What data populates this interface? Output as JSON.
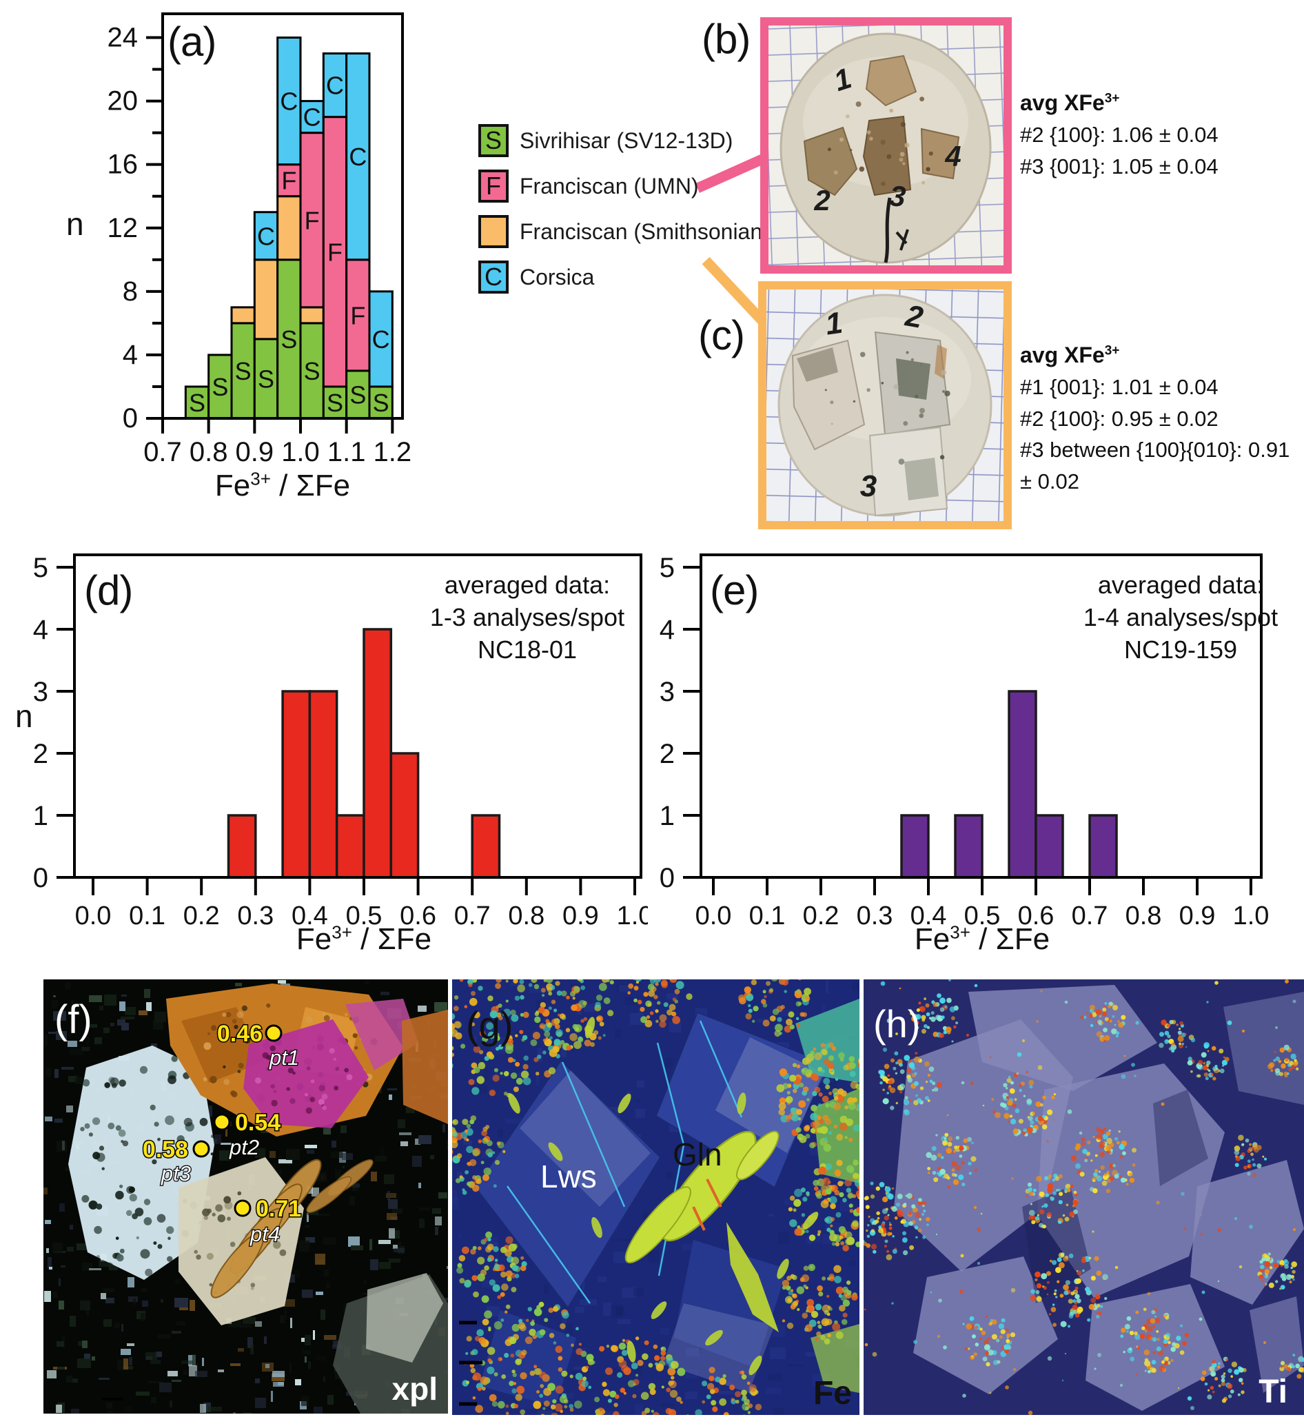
{
  "figure": {
    "background": "#ffffff"
  },
  "axis_title": {
    "base": "Fe",
    "sup": "3+",
    "rest": " / ΣFe"
  },
  "panel_a": {
    "label": "(a)"
  },
  "panel_b": {
    "label": "(b)",
    "border_color": "#F0618F",
    "fragment_labels": [
      "1",
      "2",
      "3",
      "4"
    ],
    "caption": {
      "title_base": "avg XFe",
      "title_sup": "3+",
      "lines": [
        "#2 {100}: 1.06 ± 0.04",
        "#3 {001}: 1.05 ± 0.04"
      ]
    }
  },
  "panel_c": {
    "label": "(c)",
    "border_color": "#F9B75D",
    "fragment_labels": [
      "1",
      "2",
      "3"
    ],
    "caption": {
      "title_base": "avg XFe",
      "title_sup": "3+",
      "lines": [
        "#1 {001}: 1.01 ± 0.04",
        "#2 {100}: 0.95 ± 0.02",
        "#3 between {100}{010}: 0.91 ± 0.02"
      ]
    }
  },
  "panel_d": {
    "label": "(d)"
  },
  "panel_e": {
    "label": "(e)"
  },
  "panel_f": {
    "label": "(f)",
    "tag": "xpl",
    "points": [
      {
        "name": "pt1",
        "value": "0.46"
      },
      {
        "name": "pt2",
        "value": "0.54"
      },
      {
        "name": "pt3",
        "value": "0.58"
      },
      {
        "name": "pt4",
        "value": "0.71"
      }
    ]
  },
  "panel_g": {
    "label": "(g)",
    "tag": "Fe",
    "mineral_labels": [
      "Lws",
      "Gln"
    ]
  },
  "panel_h": {
    "label": "(h)",
    "tag": "Ti"
  },
  "chart_data": [
    {
      "id": "a",
      "type": "bar",
      "stacked": true,
      "xlabel": "Fe³⁺ / ΣFe",
      "ylabel": "n",
      "bin_width": 0.05,
      "bin_starts": [
        0.75,
        0.8,
        0.85,
        0.9,
        0.95,
        1.0,
        1.05,
        1.1,
        1.15
      ],
      "series": [
        {
          "name": "Sivrihisar (SV12-13D)",
          "letter": "S",
          "color": "#82C341",
          "values": [
            2,
            4,
            6,
            5,
            10,
            6,
            2,
            3,
            2
          ]
        },
        {
          "name": "Franciscan (Smithsonian)",
          "letter": "",
          "color": "#FBBC69",
          "values": [
            0,
            0,
            1,
            5,
            4,
            1,
            0,
            0,
            0
          ]
        },
        {
          "name": "Franciscan (UMN)",
          "letter": "F",
          "color": "#F26A92",
          "values": [
            0,
            0,
            0,
            0,
            2,
            11,
            17,
            7,
            0
          ]
        },
        {
          "name": "Corsica",
          "letter": "C",
          "color": "#4FC9F1",
          "values": [
            0,
            0,
            0,
            3,
            8,
            2,
            4,
            13,
            6
          ]
        }
      ],
      "legend_order": [
        0,
        2,
        1,
        3
      ],
      "xlim": [
        0.7,
        1.222
      ],
      "ylim": [
        0,
        25.5
      ],
      "xticks": [
        "0.7",
        "0.8",
        "0.9",
        "1.0",
        "1.1",
        "1.2"
      ],
      "yticks_major": [
        0,
        4,
        8,
        12,
        16,
        20,
        24
      ],
      "yticks_minor": [
        2,
        6,
        10,
        14,
        18,
        22
      ],
      "grid": false,
      "legend_position": "right of plot"
    },
    {
      "id": "d",
      "type": "bar",
      "color": "#E8291F",
      "xlabel": "Fe³⁺ / ΣFe",
      "ylabel": "n",
      "annotation": [
        "averaged data:",
        "1-3 analyses/spot",
        "NC18-01"
      ],
      "bin_width": 0.05,
      "bins": [
        [
          0.25,
          1
        ],
        [
          0.35,
          3
        ],
        [
          0.4,
          3
        ],
        [
          0.45,
          1
        ],
        [
          0.5,
          4
        ],
        [
          0.55,
          2
        ],
        [
          0.7,
          1
        ]
      ],
      "xlim": [
        0,
        1
      ],
      "ylim": [
        0,
        5
      ],
      "xticks": [
        "0.0",
        "0.1",
        "0.2",
        "0.3",
        "0.4",
        "0.5",
        "0.6",
        "0.7",
        "0.8",
        "0.9",
        "1.0"
      ],
      "yticks": [
        0,
        1,
        2,
        3,
        4,
        5
      ],
      "grid": false
    },
    {
      "id": "e",
      "type": "bar",
      "color": "#662D91",
      "xlabel": "Fe³⁺ / ΣFe",
      "ylabel": "",
      "annotation": [
        "averaged data:",
        "1-4 analyses/spot",
        "NC19-159"
      ],
      "bin_width": 0.05,
      "bins": [
        [
          0.35,
          1
        ],
        [
          0.45,
          1
        ],
        [
          0.55,
          3
        ],
        [
          0.6,
          1
        ],
        [
          0.7,
          1
        ]
      ],
      "xlim": [
        0,
        1
      ],
      "ylim": [
        0,
        5
      ],
      "xticks": [
        "0.0",
        "0.1",
        "0.2",
        "0.3",
        "0.4",
        "0.5",
        "0.6",
        "0.7",
        "0.8",
        "0.9",
        "1.0"
      ],
      "yticks": [
        0,
        1,
        2,
        3,
        4,
        5
      ],
      "grid": false
    }
  ]
}
